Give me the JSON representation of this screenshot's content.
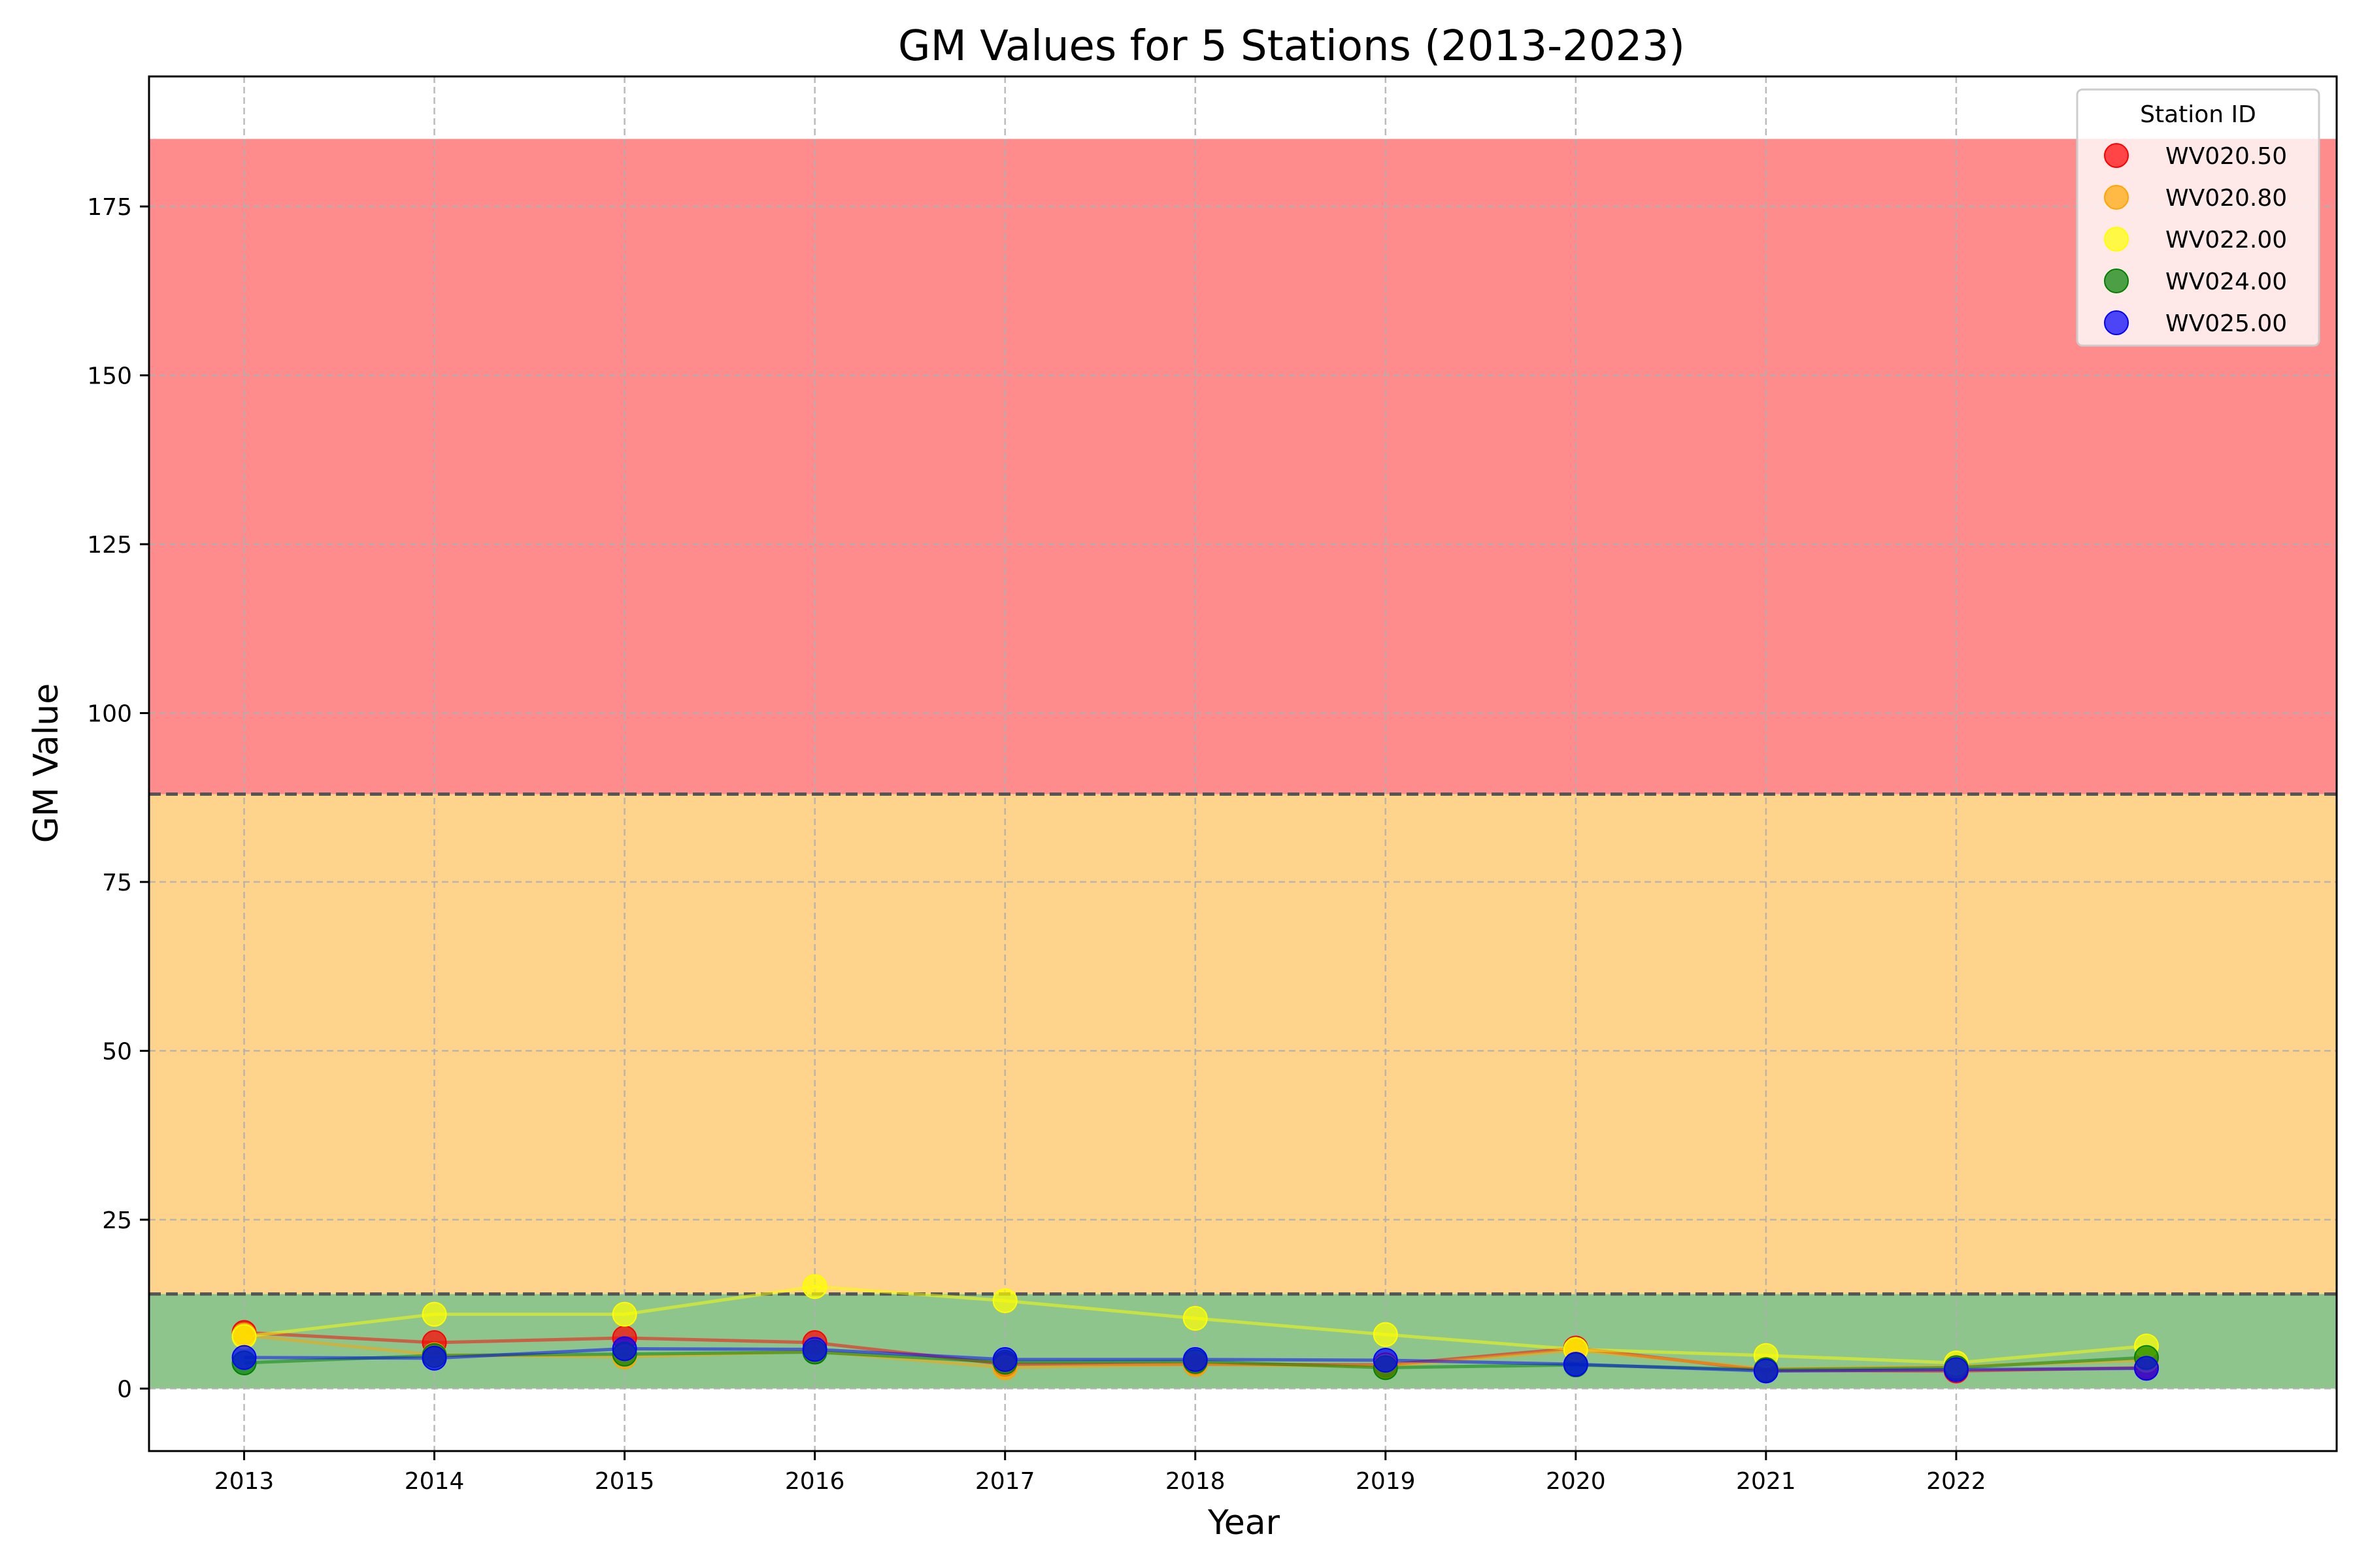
{
  "chart_data": {
    "type": "scatter",
    "title": "GM Values for 5 Stations (2013-2023)",
    "xlabel": "Year",
    "ylabel": "GM Value",
    "xlim": [
      2012.5,
      2024.0
    ],
    "ylim": [
      -9.25,
      194.25
    ],
    "x_ticks": [
      2013,
      2014,
      2015,
      2016,
      2017,
      2018,
      2019,
      2020,
      2021,
      2022
    ],
    "y_ticks": [
      0,
      25,
      50,
      75,
      100,
      125,
      150,
      175
    ],
    "grid": true,
    "legend": {
      "title": "Station ID",
      "placement": "top-right"
    },
    "bands": [
      {
        "from": 0,
        "to": 14,
        "color": "#8dc58d"
      },
      {
        "from": 14,
        "to": 88,
        "color": "#fed38b"
      },
      {
        "from": 88,
        "to": 185,
        "color": "#ff8c8c"
      }
    ],
    "thresholds": [
      14,
      88
    ],
    "x": [
      2013,
      2014,
      2015,
      2016,
      2017,
      2018,
      2019,
      2020,
      2021,
      2022,
      2023
    ],
    "series": [
      {
        "name": "WV020.50",
        "color": "#ff0000",
        "values": [
          8.3,
          6.8,
          7.5,
          6.8,
          3.6,
          3.6,
          3.5,
          6.0,
          2.7,
          2.6,
          3.1
        ]
      },
      {
        "name": "WV020.80",
        "color": "#ffa500",
        "values": [
          7.9,
          5.0,
          4.7,
          5.5,
          3.1,
          3.6,
          3.3,
          5.7,
          2.9,
          3.3,
          4.2
        ]
      },
      {
        "name": "WV022.00",
        "color": "#ffff00",
        "values": [
          7.7,
          11.0,
          11.0,
          15.1,
          13.0,
          10.4,
          8.0,
          5.8,
          4.9,
          3.8,
          6.3
        ]
      },
      {
        "name": "WV024.00",
        "color": "#008000",
        "values": [
          3.8,
          4.9,
          5.1,
          5.4,
          3.9,
          4.0,
          3.1,
          3.5,
          2.8,
          3.1,
          4.6
        ]
      },
      {
        "name": "WV025.00",
        "color": "#0000ff",
        "values": [
          4.6,
          4.5,
          5.9,
          5.8,
          4.3,
          4.3,
          4.2,
          3.6,
          2.6,
          2.8,
          3.0
        ]
      }
    ]
  }
}
